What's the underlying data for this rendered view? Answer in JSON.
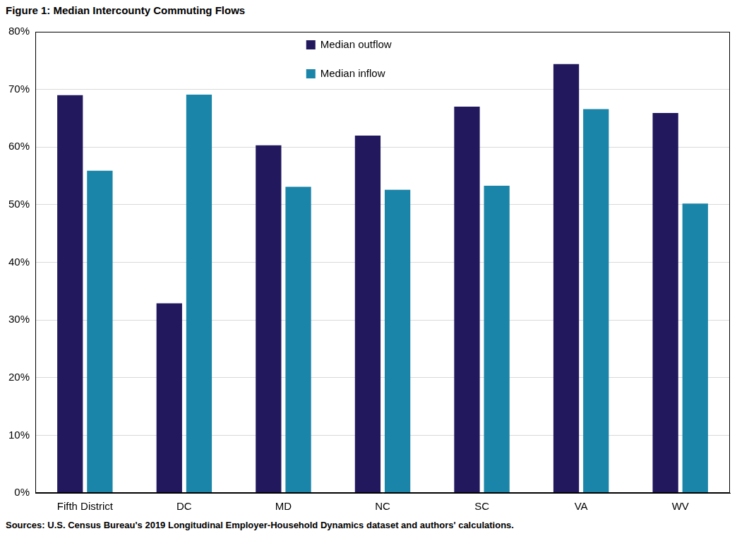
{
  "chart_data": {
    "type": "bar",
    "title": "Figure 1: Median Intercounty Commuting Flows",
    "source": "Sources: U.S. Census Bureau's 2019 Longitudinal Employer-Household Dynamics dataset and authors' calculations.",
    "categories": [
      "Fifth District",
      "DC",
      "MD",
      "NC",
      "SC",
      "VA",
      "WV"
    ],
    "series": [
      {
        "name": "Median outflow",
        "color": "#21185e",
        "values": [
          69.0,
          32.9,
          60.3,
          62.0,
          67.0,
          74.4,
          65.9
        ]
      },
      {
        "name": "Median inflow",
        "color": "#1a85a8",
        "values": [
          55.9,
          69.1,
          53.1,
          52.6,
          53.3,
          66.6,
          50.2
        ]
      }
    ],
    "ylim": [
      0,
      80
    ],
    "yticks": [
      {
        "value": 0,
        "label": "0%"
      },
      {
        "value": 10,
        "label": "10%"
      },
      {
        "value": 20,
        "label": "20%"
      },
      {
        "value": 30,
        "label": "30%"
      },
      {
        "value": 40,
        "label": "40%"
      },
      {
        "value": 50,
        "label": "50%"
      },
      {
        "value": 60,
        "label": "60%"
      },
      {
        "value": 70,
        "label": "70%"
      },
      {
        "value": 80,
        "label": "80%"
      }
    ],
    "grid": true,
    "legend": "top"
  }
}
